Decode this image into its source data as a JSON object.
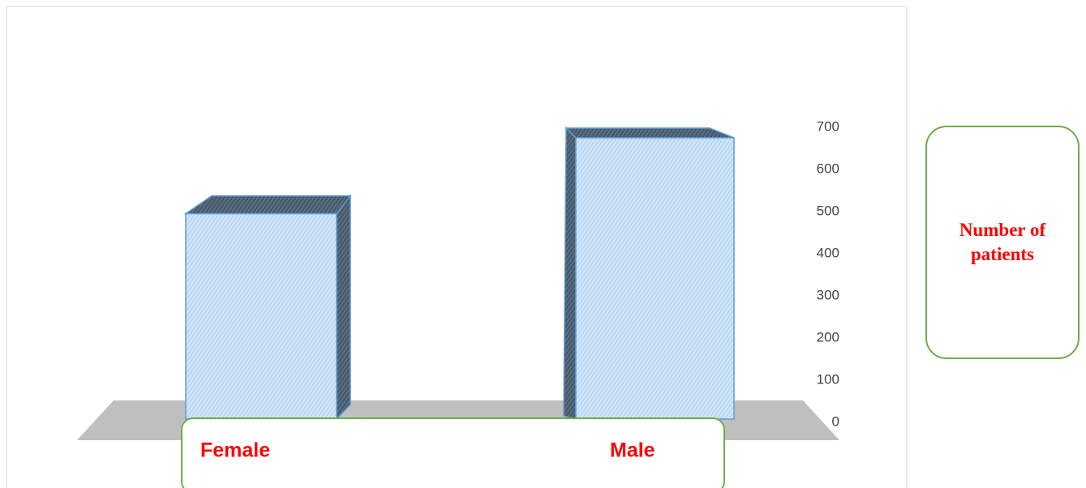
{
  "chart_data": {
    "type": "bar3d",
    "categories": [
      "Female",
      "Male"
    ],
    "series": [
      {
        "name": "Number of patients",
        "color": "#c9e1f7",
        "values": [
          495,
          675
        ]
      }
    ],
    "ylim": [
      0,
      700
    ],
    "yticks": [
      0,
      100,
      200,
      300,
      400,
      500,
      600,
      700
    ],
    "grid": false
  }
}
